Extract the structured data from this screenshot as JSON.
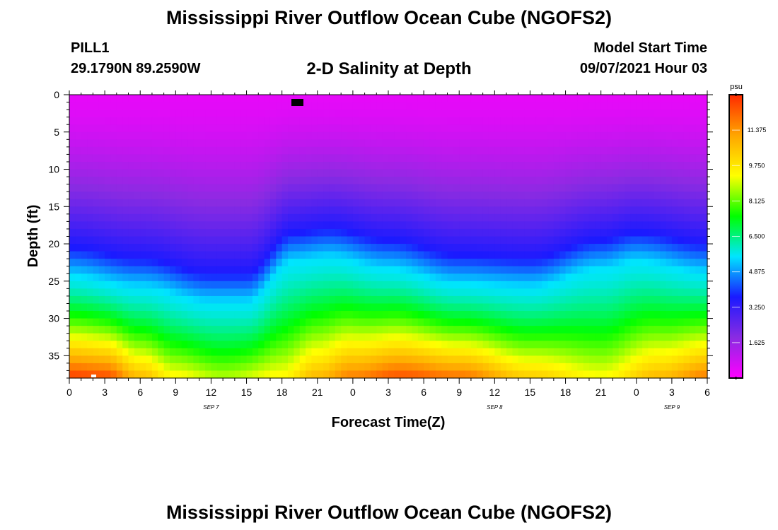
{
  "header": {
    "title": "Mississippi River Outflow Ocean Cube (NGOFS2)",
    "station": "PILL1",
    "coords": "29.1790N  89.2590W",
    "subtitle": "2-D Salinity at Depth",
    "model_start_label": "Model Start Time",
    "model_start_value": "09/07/2021 Hour 03"
  },
  "footer": {
    "title": "Mississippi River Outflow Ocean Cube (NGOFS2)"
  },
  "chart_data": {
    "type": "heatmap",
    "title": "2-D Salinity at Depth",
    "xlabel": "Forecast Time(Z)",
    "ylabel": "Depth (ft)",
    "x_range_hours": [
      0,
      54
    ],
    "y_range_ft": [
      0,
      38
    ],
    "y_inverted": true,
    "x_tick_labels": [
      "0",
      "3",
      "6",
      "9",
      "12",
      "15",
      "18",
      "21",
      "0",
      "3",
      "6",
      "9",
      "12",
      "15",
      "18",
      "21",
      "0",
      "3",
      "6"
    ],
    "day_labels": [
      {
        "label": "SEP 7",
        "hour": 12
      },
      {
        "label": "SEP 8",
        "hour": 36
      },
      {
        "label": "SEP 9",
        "hour": 51
      }
    ],
    "y_ticks": [
      0,
      5,
      10,
      15,
      20,
      25,
      30,
      35
    ],
    "colorbar": {
      "unit": "psu",
      "min": 0,
      "max": 13,
      "ticks": [
        "11.375",
        "9.750",
        "8.125",
        "6.500",
        "4.875",
        "3.250",
        "1.625"
      ],
      "colors": [
        "#ff00ff",
        "#8a2be2",
        "#1a1aff",
        "#00e5ff",
        "#00ff00",
        "#ffff00",
        "#ffa500",
        "#ff2a00"
      ]
    },
    "profile": {
      "description": "salinity (psu) vs depth; halocline depth varies with forecast time",
      "surface_value": 0.4,
      "halocline_depth_ft": [
        {
          "hour": 0,
          "depth": 23
        },
        {
          "hour": 6,
          "depth": 24.5
        },
        {
          "hour": 12,
          "depth": 26.5
        },
        {
          "hour": 15,
          "depth": 26.5
        },
        {
          "hour": 19,
          "depth": 21
        },
        {
          "hour": 22,
          "depth": 20.5
        },
        {
          "hour": 27,
          "depth": 22
        },
        {
          "hour": 33,
          "depth": 24
        },
        {
          "hour": 39,
          "depth": 24.5
        },
        {
          "hour": 45,
          "depth": 22
        },
        {
          "hour": 48,
          "depth": 21
        },
        {
          "hour": 54,
          "depth": 22.5
        }
      ],
      "bottom_value_psu": [
        {
          "hour": 0,
          "value": 12.8
        },
        {
          "hour": 3,
          "value": 12.6
        },
        {
          "hour": 6,
          "value": 10.8
        },
        {
          "hour": 9,
          "value": 9.5
        },
        {
          "hour": 13,
          "value": 8.8
        },
        {
          "hour": 18,
          "value": 9.5
        },
        {
          "hour": 21,
          "value": 10.8
        },
        {
          "hour": 24,
          "value": 11.8
        },
        {
          "hour": 28,
          "value": 12.5
        },
        {
          "hour": 33,
          "value": 12.0
        },
        {
          "hour": 39,
          "value": 10.4
        },
        {
          "hour": 45,
          "value": 9.4
        },
        {
          "hour": 50,
          "value": 10.8
        },
        {
          "hour": 54,
          "value": 11.8
        }
      ]
    }
  }
}
